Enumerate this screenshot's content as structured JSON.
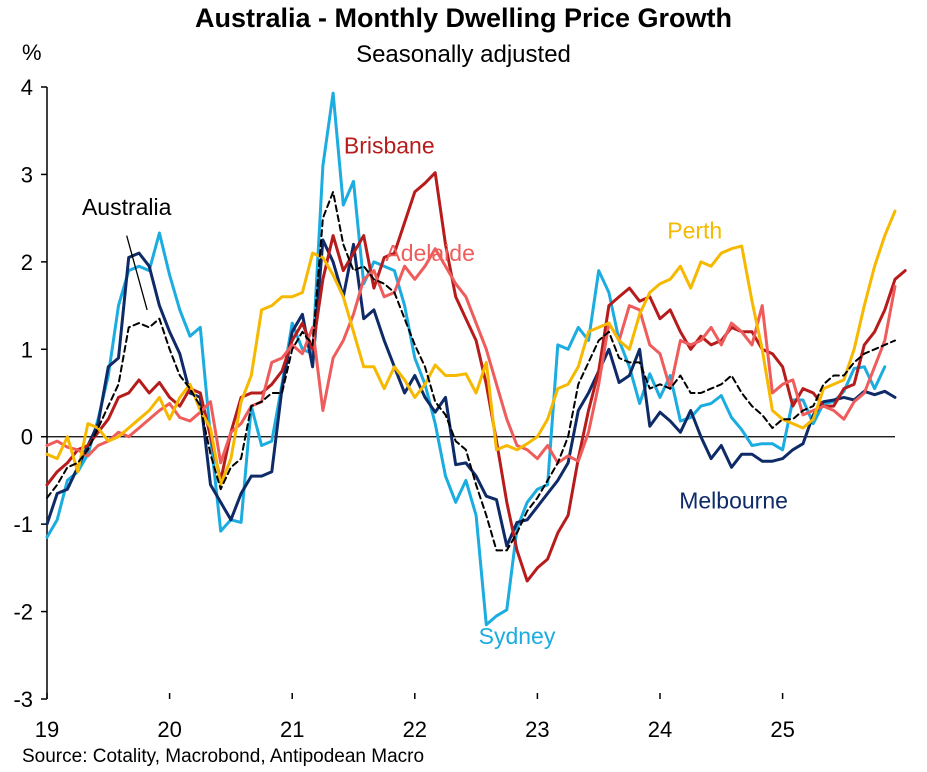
{
  "chart_data": {
    "type": "line",
    "title": "Australia - Monthly Dwelling Price Growth",
    "subtitle": "Seasonally adjusted",
    "ylabel": "%",
    "xlabel": "",
    "source": "Source: Cotality, Macrobond, Antipodean Macro",
    "ylim": [
      -3,
      4
    ],
    "yticks": [
      -3,
      -2,
      -1,
      0,
      1,
      2,
      3,
      4
    ],
    "ytick_labels": [
      "-3",
      "-2",
      "-1",
      "0",
      "1",
      "2",
      "3",
      "4"
    ],
    "xlim": [
      0,
      83
    ],
    "xticks": [
      0,
      12,
      24,
      36,
      48,
      60,
      72
    ],
    "xtick_labels": [
      "19",
      "20",
      "21",
      "22",
      "23",
      "24",
      "25"
    ],
    "x_unit": "months since Jan 2019",
    "series": [
      {
        "name": "Sydney",
        "color": "#1BACE0",
        "width": 3,
        "dash": false,
        "label": {
          "text": "Sydney",
          "x": 46,
          "y": -2.28
        },
        "values": [
          -1.15,
          -0.95,
          -0.5,
          -0.4,
          -0.2,
          0.2,
          0.7,
          1.5,
          1.9,
          1.95,
          1.9,
          2.33,
          1.85,
          1.45,
          1.15,
          1.25,
          0.0,
          -1.08,
          -0.95,
          -0.98,
          0.35,
          -0.1,
          -0.05,
          0.6,
          1.3,
          1.0,
          0.95,
          3.1,
          3.93,
          2.65,
          2.92,
          1.75,
          2.0,
          1.95,
          1.9,
          1.5,
          0.9,
          0.6,
          0.15,
          -0.45,
          -0.75,
          -0.5,
          -0.9,
          -2.15,
          -2.05,
          -1.98,
          -1.05,
          -0.75,
          -0.6,
          -0.55,
          1.05,
          1.0,
          1.25,
          1.1,
          1.9,
          1.65,
          1.1,
          0.8,
          0.38,
          0.72,
          0.45,
          0.7,
          0.18,
          0.22,
          0.35,
          0.38,
          0.47,
          0.22,
          0.08,
          -0.1,
          -0.08,
          -0.08,
          -0.15,
          0.42,
          0.42,
          0.15,
          0.38,
          0.4,
          0.52,
          0.78,
          0.8,
          0.55,
          0.8
        ]
      },
      {
        "name": "Melbourne",
        "color": "#0E2B67",
        "width": 3,
        "dash": false,
        "label": {
          "text": "Melbourne",
          "x": 67.2,
          "y": -0.73
        },
        "values": [
          -1.0,
          -0.65,
          -0.6,
          -0.35,
          -0.1,
          0.15,
          0.8,
          0.9,
          2.05,
          2.1,
          1.95,
          1.5,
          1.2,
          0.95,
          0.5,
          0.45,
          -0.55,
          -0.75,
          -0.95,
          -0.65,
          -0.45,
          -0.45,
          -0.4,
          0.55,
          1.2,
          1.4,
          0.8,
          2.25,
          2.0,
          1.6,
          2.2,
          1.35,
          1.45,
          1.1,
          0.8,
          0.5,
          0.7,
          0.45,
          0.28,
          0.45,
          -0.32,
          -0.3,
          -0.45,
          -0.68,
          -0.72,
          -1.25,
          -0.98,
          -0.95,
          -0.8,
          -0.65,
          -0.5,
          -0.3,
          0.3,
          0.5,
          0.75,
          1.0,
          0.62,
          0.7,
          1.0,
          0.12,
          0.28,
          0.18,
          0.05,
          0.3,
          0.0,
          -0.25,
          -0.1,
          -0.35,
          -0.2,
          -0.2,
          -0.28,
          -0.28,
          -0.25,
          -0.15,
          -0.08,
          0.25,
          0.4,
          0.42,
          0.45,
          0.42,
          0.52,
          0.48,
          0.52,
          0.45
        ]
      },
      {
        "name": "Brisbane",
        "color": "#B71C1C",
        "width": 3,
        "dash": false,
        "label": {
          "text": "Brisbane",
          "x": 33.5,
          "y": 3.33
        },
        "values": [
          -0.55,
          -0.4,
          -0.3,
          -0.15,
          -0.1,
          0.05,
          0.2,
          0.45,
          0.5,
          0.65,
          0.5,
          0.62,
          0.45,
          0.35,
          0.55,
          0.5,
          0.0,
          -0.5,
          0.05,
          0.45,
          0.5,
          0.5,
          0.6,
          0.75,
          1.1,
          1.3,
          1.0,
          1.8,
          2.3,
          1.9,
          2.1,
          2.3,
          1.7,
          2.05,
          2.1,
          2.45,
          2.8,
          2.9,
          3.02,
          2.2,
          1.6,
          1.35,
          1.1,
          0.6,
          -0.05,
          -0.75,
          -1.3,
          -1.65,
          -1.5,
          -1.4,
          -1.1,
          -0.9,
          -0.25,
          0.3,
          0.75,
          1.5,
          1.6,
          1.7,
          1.55,
          1.6,
          1.35,
          1.45,
          1.2,
          1.0,
          1.15,
          1.05,
          1.1,
          1.25,
          1.2,
          1.2,
          1.0,
          0.95,
          0.8,
          0.35,
          0.55,
          0.5,
          0.35,
          0.35,
          0.55,
          0.6,
          1.05,
          1.2,
          1.45,
          1.8,
          1.9
        ]
      },
      {
        "name": "Adelaide",
        "color": "#EF5C5C",
        "width": 3,
        "dash": false,
        "label": {
          "text": "Adelaide",
          "x": 37.5,
          "y": 2.1
        },
        "values": [
          -0.1,
          -0.05,
          -0.12,
          -0.15,
          -0.22,
          -0.1,
          -0.05,
          0.05,
          0.0,
          0.1,
          0.2,
          0.3,
          0.38,
          0.22,
          0.18,
          0.28,
          0.4,
          -0.3,
          0.05,
          0.15,
          0.35,
          0.4,
          0.85,
          0.9,
          1.05,
          0.95,
          1.25,
          0.3,
          0.9,
          1.1,
          1.4,
          1.8,
          1.9,
          1.6,
          1.65,
          1.95,
          1.8,
          1.95,
          2.15,
          1.95,
          1.75,
          1.6,
          1.3,
          1.0,
          0.6,
          0.2,
          -0.1,
          -0.15,
          -0.25,
          -0.1,
          -0.3,
          -0.22,
          -0.28,
          0.05,
          0.6,
          1.3,
          1.1,
          1.5,
          1.45,
          1.05,
          0.95,
          0.55,
          1.1,
          1.05,
          1.1,
          1.25,
          1.05,
          1.3,
          1.2,
          1.05,
          1.5,
          0.5,
          0.6,
          0.65,
          0.25,
          0.3,
          0.35,
          0.3,
          0.2,
          0.4,
          0.5,
          0.8,
          1.1,
          1.72
        ]
      },
      {
        "name": "Perth",
        "color": "#F6B900",
        "width": 3,
        "dash": false,
        "label": {
          "text": "Perth",
          "x": 63.4,
          "y": 2.36
        },
        "values": [
          -0.2,
          -0.25,
          0.0,
          -0.4,
          0.15,
          0.1,
          -0.05,
          0.0,
          0.1,
          0.2,
          0.3,
          0.45,
          0.2,
          0.45,
          0.6,
          0.3,
          0.1,
          -0.55,
          -0.25,
          0.4,
          0.7,
          1.45,
          1.5,
          1.6,
          1.6,
          1.65,
          2.1,
          2.05,
          1.85,
          1.6,
          1.2,
          0.8,
          0.8,
          0.55,
          0.8,
          0.65,
          0.45,
          0.6,
          0.82,
          0.7,
          0.7,
          0.72,
          0.5,
          0.85,
          -0.15,
          -0.1,
          -0.15,
          -0.08,
          0.0,
          0.2,
          0.55,
          0.6,
          0.8,
          1.2,
          1.25,
          1.3,
          1.1,
          1.0,
          1.4,
          1.65,
          1.75,
          1.8,
          1.95,
          1.7,
          2.0,
          1.95,
          2.1,
          2.15,
          2.18,
          1.55,
          1.0,
          0.3,
          0.2,
          0.15,
          0.1,
          0.2,
          0.55,
          0.6,
          0.65,
          1.0,
          1.5,
          1.95,
          2.3,
          2.58
        ]
      },
      {
        "name": "Australia",
        "color": "#000000",
        "width": 2,
        "dash": true,
        "label": {
          "text": "Australia",
          "x": 7.8,
          "y": 2.63
        },
        "values": [
          -0.7,
          -0.55,
          -0.35,
          -0.3,
          -0.15,
          0.1,
          0.35,
          0.6,
          1.25,
          1.3,
          1.25,
          1.35,
          1.0,
          0.7,
          0.55,
          0.35,
          -0.2,
          -0.6,
          -0.35,
          -0.25,
          0.35,
          0.4,
          0.5,
          0.5,
          1.0,
          1.2,
          1.05,
          2.5,
          2.8,
          2.2,
          1.9,
          1.95,
          1.8,
          1.75,
          1.65,
          1.35,
          1.05,
          0.8,
          0.4,
          0.25,
          -0.05,
          -0.15,
          -0.55,
          -0.9,
          -1.3,
          -1.3,
          -1.1,
          -0.85,
          -0.7,
          -0.5,
          -0.3,
          0.0,
          0.6,
          0.85,
          1.1,
          1.2,
          0.9,
          0.85,
          0.85,
          0.55,
          0.6,
          0.55,
          0.7,
          0.5,
          0.5,
          0.55,
          0.6,
          0.7,
          0.5,
          0.35,
          0.25,
          0.1,
          0.2,
          0.2,
          0.3,
          0.35,
          0.6,
          0.7,
          0.7,
          0.85,
          0.95,
          1.0,
          1.05,
          1.1
        ]
      }
    ],
    "annotations": [
      {
        "text": "Australia",
        "from": {
          "x": 7.8,
          "y": 2.3
        },
        "to": {
          "x": 9.8,
          "y": 1.45
        }
      }
    ]
  }
}
